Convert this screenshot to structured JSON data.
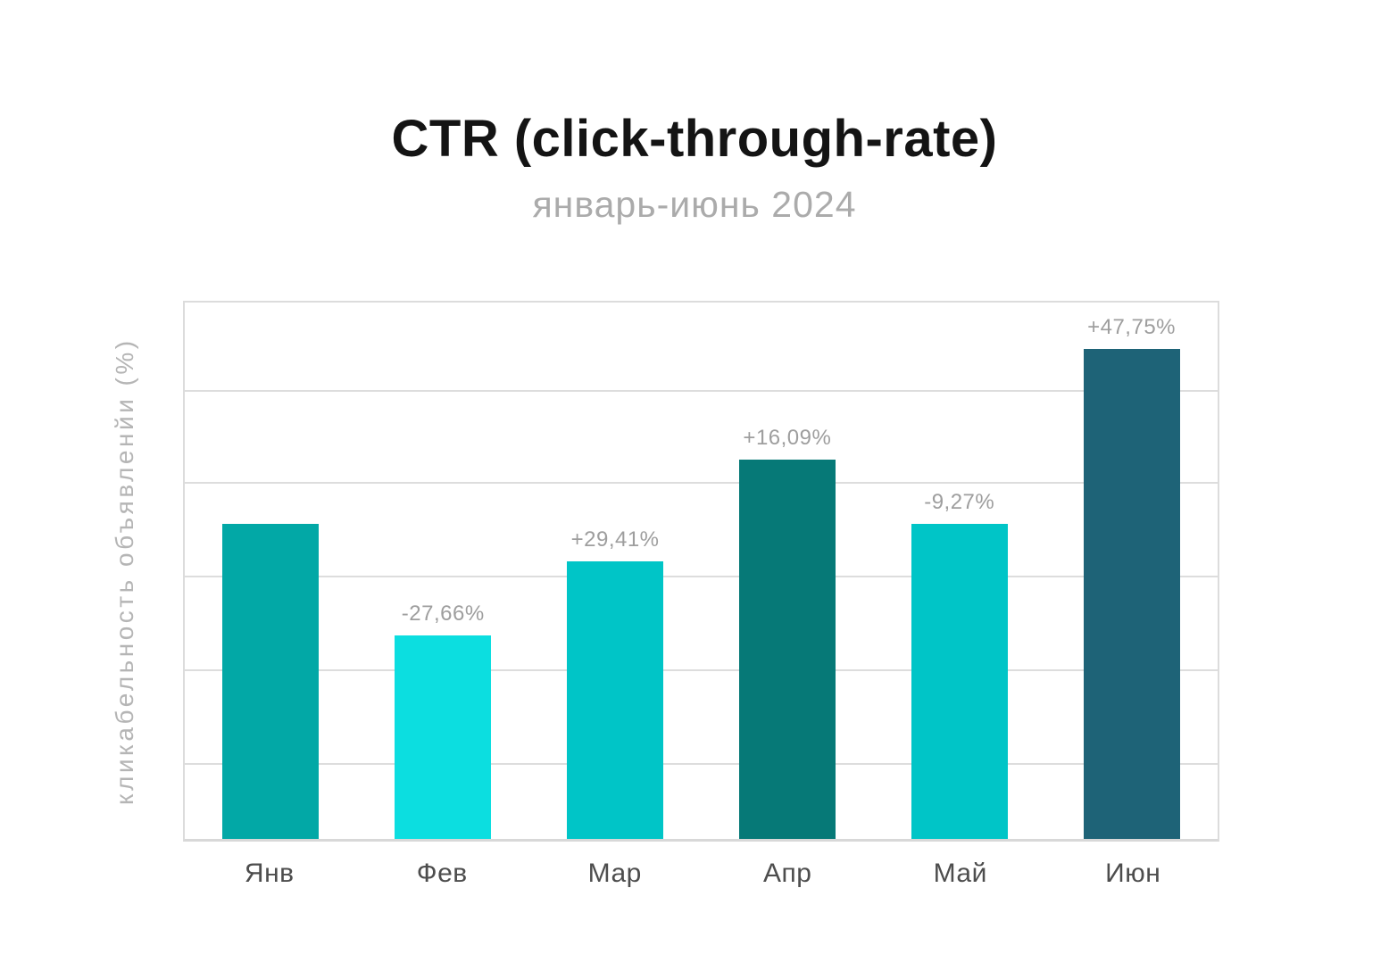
{
  "header": {
    "title": "CTR (click-through-rate)",
    "subtitle": "январь-июнь 2024"
  },
  "chart_data": {
    "type": "bar",
    "title": "CTR (click-through-rate)",
    "subtitle": "январь-июнь 2024",
    "xlabel": "",
    "ylabel": "кликабельность объявленйи (%)",
    "categories": [
      "Янв",
      "Фев",
      "Мар",
      "Апр",
      "Май",
      "Июн"
    ],
    "series": [
      {
        "name": "CTR",
        "bar_height_pct_of_plot": [
          58.7,
          38.0,
          51.7,
          70.8,
          58.7,
          91.3
        ],
        "value_labels": [
          "",
          "-27,66%",
          "+29,41%",
          "+16,09%",
          "-9,27%",
          "+47,75%"
        ],
        "bar_colors": [
          "#02A8A6",
          "#0CDEE0",
          "#00C5C7",
          "#067977",
          "#00C5C7",
          "#1E6377"
        ]
      }
    ],
    "axis_ticks_visible": false,
    "grid": "horizontal",
    "legend": "none"
  },
  "colors": {
    "title": "#141414",
    "subtitle": "#ABABAB",
    "axis_label": "#B5B5B5",
    "value_label": "#9E9E9E",
    "x_tick_label": "#4D4D4D",
    "gridline": "#DDDDDD",
    "plot_border": "#DCDCDC"
  }
}
